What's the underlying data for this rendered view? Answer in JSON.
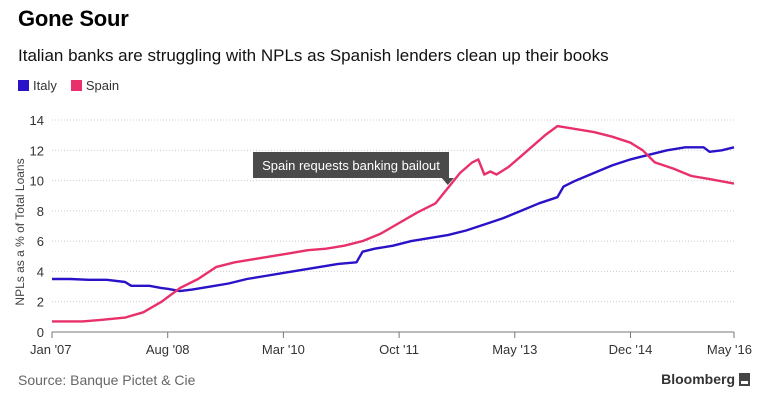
{
  "header": {
    "title": "Gone Sour",
    "subtitle": "Italian banks are struggling with NPLs as Spanish lenders clean up their books"
  },
  "footer": {
    "source": "Source: Banque Pictet & Cie",
    "brand": "Bloomberg"
  },
  "colors": {
    "italy": "#2a12c8",
    "spain": "#e8306a",
    "axis": "#777777",
    "grid": "#cccccc",
    "annotation_bg": "#4a4a4a"
  },
  "chart_data": {
    "type": "line",
    "ylabel": "NPLs as a % of Total Loans",
    "ylim": [
      0,
      14
    ],
    "y_ticks": [
      0,
      2,
      4,
      6,
      8,
      10,
      12,
      14
    ],
    "x_range": [
      "2007-01",
      "2016-05"
    ],
    "x_ticks": [
      {
        "label": "Jan '07",
        "date": "2007-01"
      },
      {
        "label": "Aug '08",
        "date": "2008-08"
      },
      {
        "label": "Mar '10",
        "date": "2010-03"
      },
      {
        "label": "Oct '11",
        "date": "2011-10"
      },
      {
        "label": "May '13",
        "date": "2013-05"
      },
      {
        "label": "Dec '14",
        "date": "2014-12"
      },
      {
        "label": "May '16",
        "date": "2016-05"
      }
    ],
    "grid": true,
    "legend_position": "top-left",
    "annotation": {
      "text": "Spain requests banking bailout",
      "date": "2012-06",
      "value": 9.6
    },
    "series": [
      {
        "name": "Italy",
        "color": "#2a12c8",
        "points": [
          [
            "2007-01",
            3.5
          ],
          [
            "2007-04",
            3.5
          ],
          [
            "2007-07",
            3.45
          ],
          [
            "2007-10",
            3.45
          ],
          [
            "2008-01",
            3.3
          ],
          [
            "2008-02",
            3.05
          ],
          [
            "2008-05",
            3.05
          ],
          [
            "2008-07",
            2.9
          ],
          [
            "2008-08",
            2.85
          ],
          [
            "2008-10",
            2.7
          ],
          [
            "2008-12",
            2.8
          ],
          [
            "2009-03",
            3.0
          ],
          [
            "2009-06",
            3.2
          ],
          [
            "2009-09",
            3.5
          ],
          [
            "2009-12",
            3.7
          ],
          [
            "2010-03",
            3.9
          ],
          [
            "2010-06",
            4.1
          ],
          [
            "2010-09",
            4.3
          ],
          [
            "2010-12",
            4.5
          ],
          [
            "2011-03",
            4.6
          ],
          [
            "2011-04",
            5.3
          ],
          [
            "2011-06",
            5.5
          ],
          [
            "2011-09",
            5.7
          ],
          [
            "2011-12",
            6.0
          ],
          [
            "2012-03",
            6.2
          ],
          [
            "2012-06",
            6.4
          ],
          [
            "2012-09",
            6.7
          ],
          [
            "2012-12",
            7.1
          ],
          [
            "2013-03",
            7.5
          ],
          [
            "2013-06",
            8.0
          ],
          [
            "2013-09",
            8.5
          ],
          [
            "2013-12",
            8.9
          ],
          [
            "2014-01",
            9.6
          ],
          [
            "2014-03",
            10.0
          ],
          [
            "2014-06",
            10.5
          ],
          [
            "2014-09",
            11.0
          ],
          [
            "2014-12",
            11.4
          ],
          [
            "2015-03",
            11.7
          ],
          [
            "2015-06",
            12.0
          ],
          [
            "2015-09",
            12.2
          ],
          [
            "2015-12",
            12.2
          ],
          [
            "2016-01",
            11.9
          ],
          [
            "2016-03",
            12.0
          ],
          [
            "2016-05",
            12.2
          ]
        ]
      },
      {
        "name": "Spain",
        "color": "#e8306a",
        "points": [
          [
            "2007-01",
            0.7
          ],
          [
            "2007-06",
            0.7
          ],
          [
            "2007-09",
            0.8
          ],
          [
            "2008-01",
            0.95
          ],
          [
            "2008-04",
            1.3
          ],
          [
            "2008-07",
            2.0
          ],
          [
            "2008-10",
            2.9
          ],
          [
            "2009-01",
            3.5
          ],
          [
            "2009-04",
            4.3
          ],
          [
            "2009-07",
            4.6
          ],
          [
            "2009-10",
            4.8
          ],
          [
            "2010-01",
            5.0
          ],
          [
            "2010-04",
            5.2
          ],
          [
            "2010-07",
            5.4
          ],
          [
            "2010-10",
            5.5
          ],
          [
            "2011-01",
            5.7
          ],
          [
            "2011-04",
            6.0
          ],
          [
            "2011-07",
            6.5
          ],
          [
            "2011-10",
            7.2
          ],
          [
            "2012-01",
            7.9
          ],
          [
            "2012-04",
            8.5
          ],
          [
            "2012-06",
            9.5
          ],
          [
            "2012-08",
            10.5
          ],
          [
            "2012-10",
            11.2
          ],
          [
            "2012-11",
            11.4
          ],
          [
            "2012-12",
            10.4
          ],
          [
            "2013-01",
            10.6
          ],
          [
            "2013-02",
            10.4
          ],
          [
            "2013-04",
            10.9
          ],
          [
            "2013-06",
            11.6
          ],
          [
            "2013-08",
            12.3
          ],
          [
            "2013-10",
            13.0
          ],
          [
            "2013-12",
            13.6
          ],
          [
            "2014-03",
            13.4
          ],
          [
            "2014-06",
            13.2
          ],
          [
            "2014-09",
            12.9
          ],
          [
            "2014-12",
            12.5
          ],
          [
            "2015-02",
            12.0
          ],
          [
            "2015-04",
            11.2
          ],
          [
            "2015-07",
            10.8
          ],
          [
            "2015-10",
            10.3
          ],
          [
            "2016-01",
            10.1
          ],
          [
            "2016-05",
            9.8
          ]
        ]
      }
    ]
  }
}
